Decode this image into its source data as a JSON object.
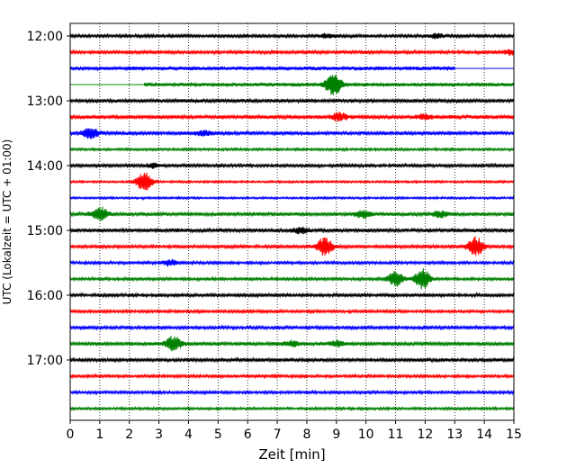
{
  "chart_data": {
    "type": "line",
    "title": "",
    "xlabel": "Zeit  [min]",
    "ylabel": "UTC (Lokalzeit = UTC + 01:00)",
    "xlim": [
      0,
      15
    ],
    "x_ticks": [
      "0",
      "1",
      "2",
      "3",
      "4",
      "5",
      "6",
      "7",
      "8",
      "9",
      "10",
      "11",
      "12",
      "13",
      "14",
      "15"
    ],
    "y_ticks": [
      "12:00",
      "13:00",
      "14:00",
      "15:00",
      "16:00",
      "17:00"
    ],
    "row_interval_min": 15,
    "grid": "vertical dotted",
    "colors": [
      "#000000",
      "#ff0000",
      "#0000ff",
      "#008000"
    ],
    "rows": [
      {
        "start": "12:00",
        "color": "#000000",
        "noise": 0.9,
        "events": [
          {
            "t": 8.7,
            "amp": 2.0
          },
          {
            "t": 12.4,
            "amp": 2.2
          }
        ]
      },
      {
        "start": "12:15",
        "color": "#ff0000",
        "noise": 0.9,
        "events": [
          {
            "t": 14.9,
            "amp": 2.5
          }
        ]
      },
      {
        "start": "12:30",
        "color": "#0000ff",
        "noise": 1.1,
        "data_end_min": 13.0,
        "events": []
      },
      {
        "start": "12:45",
        "color": "#008000",
        "noise": 1.0,
        "data_start_min": 2.5,
        "events": [
          {
            "t": 8.9,
            "amp": 12.0
          }
        ]
      },
      {
        "start": "13:00",
        "color": "#000000",
        "noise": 1.0,
        "events": []
      },
      {
        "start": "13:15",
        "color": "#ff0000",
        "noise": 1.1,
        "events": [
          {
            "t": 9.1,
            "amp": 4.0
          },
          {
            "t": 12.0,
            "amp": 2.5
          }
        ]
      },
      {
        "start": "13:30",
        "color": "#0000ff",
        "noise": 1.0,
        "events": [
          {
            "t": 0.7,
            "amp": 6.0
          },
          {
            "t": 4.5,
            "amp": 2.5
          }
        ]
      },
      {
        "start": "13:45",
        "color": "#008000",
        "noise": 0.7,
        "events": []
      },
      {
        "start": "14:00",
        "color": "#000000",
        "noise": 0.9,
        "events": [
          {
            "t": 2.8,
            "amp": 2.0
          }
        ]
      },
      {
        "start": "14:15",
        "color": "#ff0000",
        "noise": 0.6,
        "events": [
          {
            "t": 2.5,
            "amp": 11.0
          }
        ]
      },
      {
        "start": "14:30",
        "color": "#0000ff",
        "noise": 0.6,
        "events": []
      },
      {
        "start": "14:45",
        "color": "#008000",
        "noise": 1.0,
        "events": [
          {
            "t": 1.0,
            "amp": 8.0
          },
          {
            "t": 9.9,
            "amp": 4.0
          },
          {
            "t": 12.5,
            "amp": 3.0
          }
        ]
      },
      {
        "start": "15:00",
        "color": "#000000",
        "noise": 1.1,
        "events": [
          {
            "t": 7.8,
            "amp": 3.0
          }
        ]
      },
      {
        "start": "15:15",
        "color": "#ff0000",
        "noise": 0.9,
        "events": [
          {
            "t": 8.6,
            "amp": 10.0
          },
          {
            "t": 13.7,
            "amp": 11.0
          }
        ]
      },
      {
        "start": "15:30",
        "color": "#0000ff",
        "noise": 0.8,
        "events": [
          {
            "t": 3.4,
            "amp": 3.0
          }
        ]
      },
      {
        "start": "15:45",
        "color": "#008000",
        "noise": 0.8,
        "events": [
          {
            "t": 11.0,
            "amp": 8.0
          },
          {
            "t": 11.9,
            "amp": 11.0
          }
        ]
      },
      {
        "start": "16:00",
        "color": "#000000",
        "noise": 0.9,
        "events": []
      },
      {
        "start": "16:15",
        "color": "#ff0000",
        "noise": 0.8,
        "events": []
      },
      {
        "start": "16:30",
        "color": "#0000ff",
        "noise": 0.9,
        "events": []
      },
      {
        "start": "16:45",
        "color": "#008000",
        "noise": 1.0,
        "events": [
          {
            "t": 3.5,
            "amp": 8.0
          },
          {
            "t": 7.5,
            "amp": 3.0
          },
          {
            "t": 9.0,
            "amp": 3.0
          }
        ]
      },
      {
        "start": "17:00",
        "color": "#000000",
        "noise": 1.0,
        "events": []
      },
      {
        "start": "17:15",
        "color": "#ff0000",
        "noise": 0.8,
        "events": []
      },
      {
        "start": "17:30",
        "color": "#0000ff",
        "noise": 0.8,
        "events": []
      },
      {
        "start": "17:45",
        "color": "#008000",
        "noise": 0.7,
        "events": []
      }
    ]
  }
}
